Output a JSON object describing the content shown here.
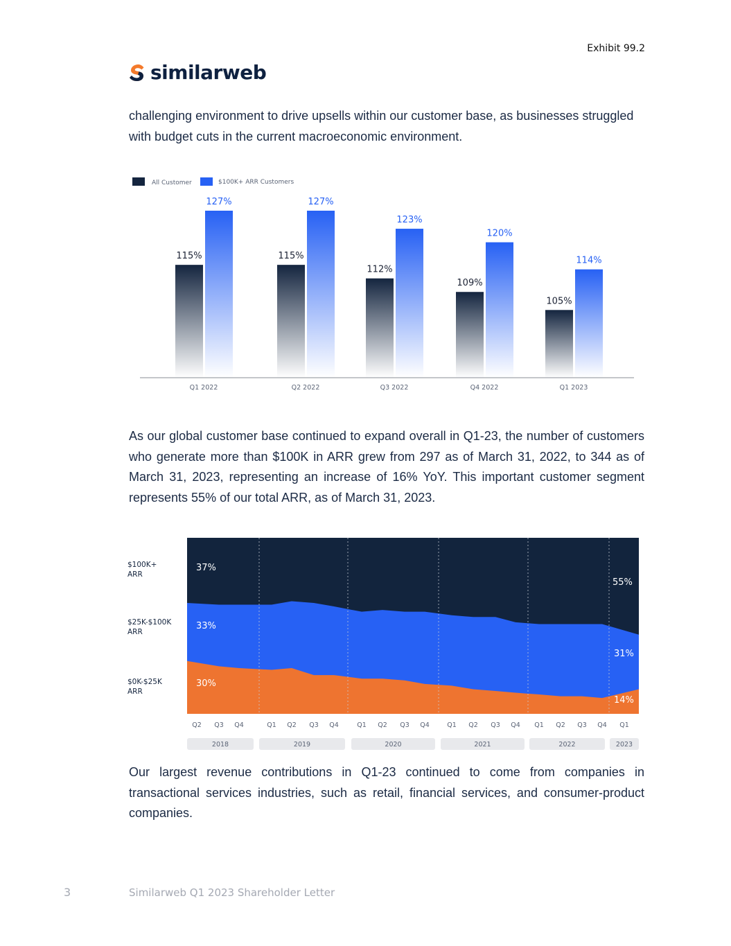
{
  "header": {
    "exhibit": "Exhibit 99.2",
    "logo_text": "similarweb"
  },
  "paragraphs": [
    "challenging environment to drive upsells within our customer base, as businesses struggled with budget cuts in the current macroeconomic environment.",
    "As our global customer base continued to expand overall in Q1-23, the number of customers who generate more than $100K in ARR grew from 297 as of March 31, 2022, to 344 as of March 31, 2023, representing an increase of 16% YoY. This important customer segment represents 55% of our total ARR, as of March 31, 2023.",
    "Our largest revenue contributions in Q1-23 continued to come from companies in transactional services industries, such as retail, financial services, and consumer-product companies."
  ],
  "footer": {
    "page_number": "3",
    "title": "Similarweb Q1 2023 Shareholder Letter"
  },
  "colors": {
    "navy": "#12243d",
    "blue": "#2761f4",
    "orange": "#ee7430",
    "logo_orange": "#f47a2b"
  },
  "chart_data": [
    {
      "type": "bar",
      "categories": [
        "Q1 2022",
        "Q2 2022",
        "Q3 2022",
        "Q4 2022",
        "Q1 2023"
      ],
      "series": [
        {
          "name": "All Customer",
          "values": [
            115,
            115,
            112,
            109,
            105
          ],
          "labels": [
            "115%",
            "115%",
            "112%",
            "109%",
            "105%"
          ]
        },
        {
          "name": "$100K+ ARR Customers",
          "values": [
            127,
            127,
            123,
            120,
            114
          ],
          "labels": [
            "127%",
            "127%",
            "123%",
            "120%",
            "114%"
          ]
        }
      ],
      "legend": "top-left",
      "grid": false
    },
    {
      "type": "area",
      "stacked_percent": true,
      "x": [
        "Q2",
        "Q3",
        "Q4",
        "Q1",
        "Q2",
        "Q3",
        "Q4",
        "Q1",
        "Q2",
        "Q3",
        "Q4",
        "Q1",
        "Q2",
        "Q3",
        "Q4",
        "Q1",
        "Q2",
        "Q3",
        "Q4",
        "Q1"
      ],
      "year_groups": [
        {
          "label": "2018",
          "count": 3
        },
        {
          "label": "2019",
          "count": 4
        },
        {
          "label": "2020",
          "count": 4
        },
        {
          "label": "2021",
          "count": 4
        },
        {
          "label": "2022",
          "count": 4
        },
        {
          "label": "2023",
          "count": 1
        }
      ],
      "series": [
        {
          "name": "$0K-$25K ARR",
          "values": [
            30,
            27,
            26,
            25,
            26,
            22,
            22,
            20,
            20,
            19,
            17,
            16,
            14,
            13,
            12,
            11,
            10,
            10,
            9,
            14
          ]
        },
        {
          "name": "$25K-$100K ARR",
          "values": [
            33,
            35,
            36,
            37,
            38,
            41,
            39,
            38,
            39,
            39,
            41,
            40,
            41,
            42,
            40,
            40,
            41,
            41,
            42,
            31
          ]
        },
        {
          "name": "$100K+ ARR",
          "values": [
            37,
            38,
            38,
            38,
            36,
            37,
            39,
            42,
            41,
            42,
            42,
            44,
            45,
            45,
            48,
            49,
            49,
            49,
            49,
            55
          ]
        }
      ],
      "annotations": {
        "start": [
          "30%",
          "33%",
          "37%"
        ],
        "end": [
          "14%",
          "31%",
          "55%"
        ]
      },
      "legend": "left"
    }
  ]
}
